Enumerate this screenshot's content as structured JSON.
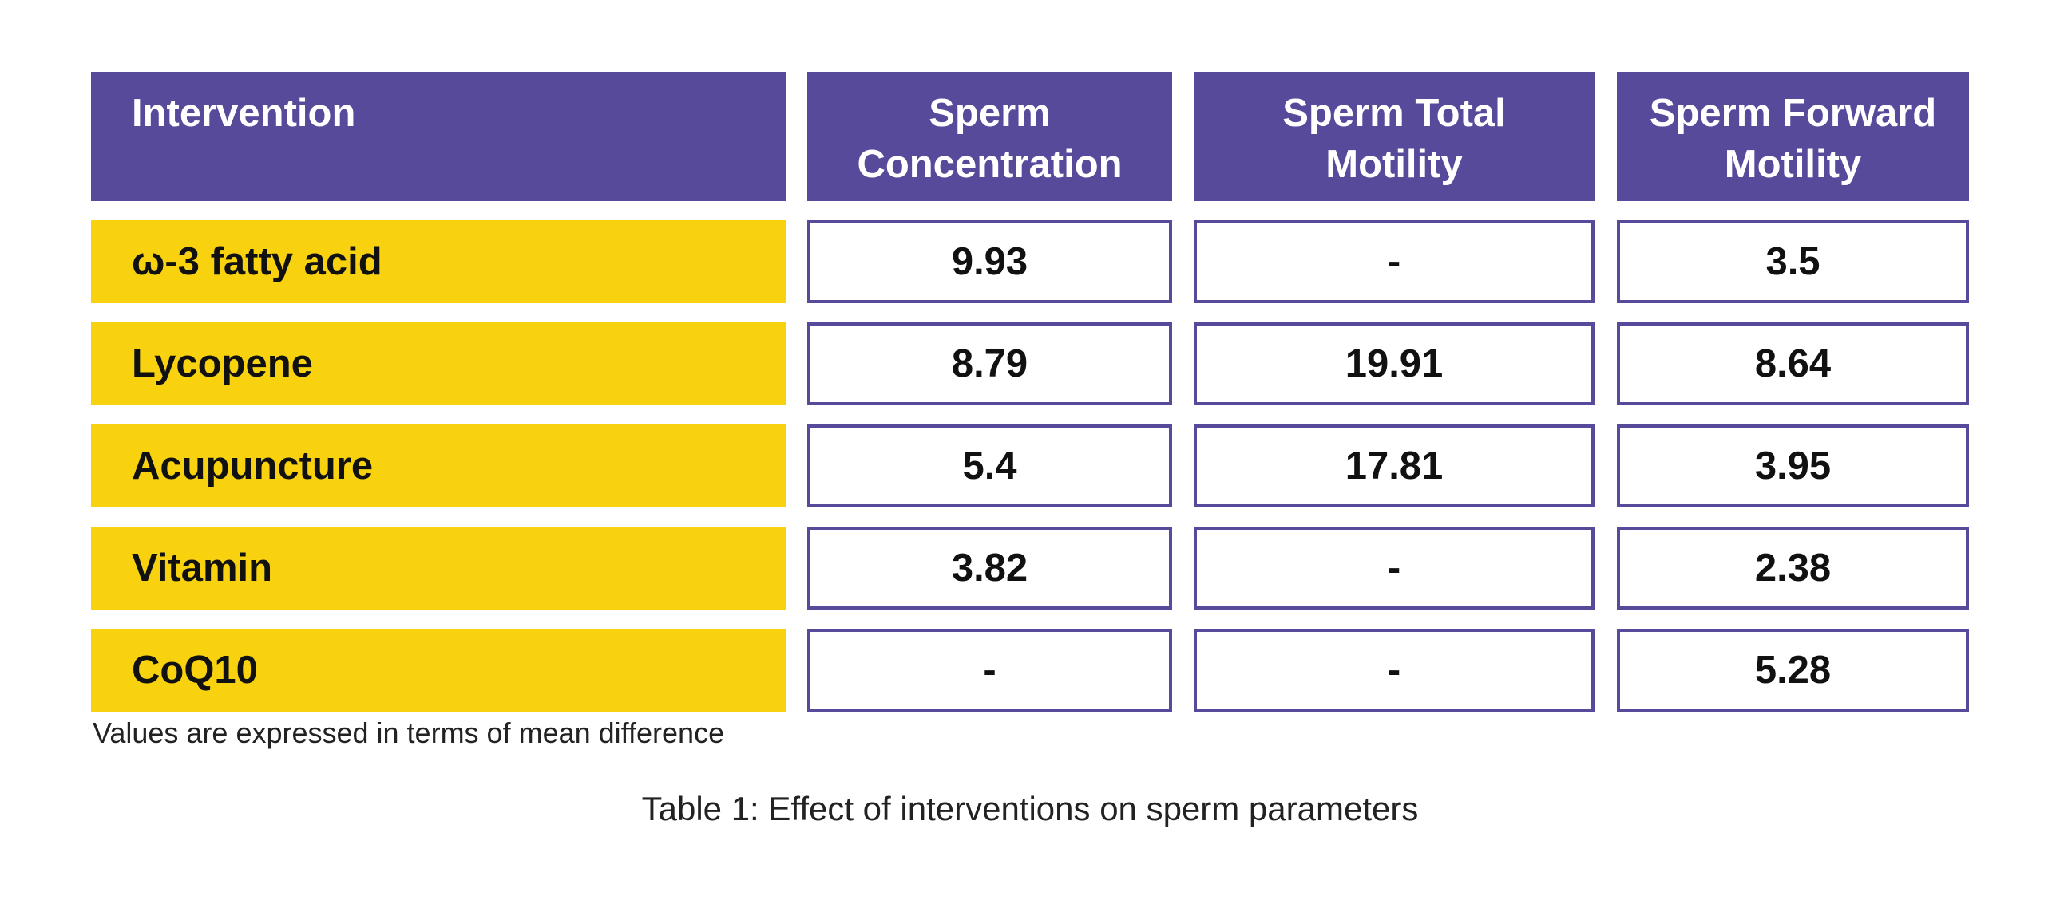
{
  "table": {
    "headers": [
      "Intervention",
      "Sperm Concentration",
      "Sperm Total Motility",
      "Sperm Forward Motility"
    ],
    "rows": [
      {
        "label": "ω-3 fatty acid",
        "values": [
          "9.93",
          "-",
          "3.5"
        ]
      },
      {
        "label": "Lycopene",
        "values": [
          "8.79",
          "19.91",
          "8.64"
        ]
      },
      {
        "label": "Acupuncture",
        "values": [
          "5.4",
          "17.81",
          "3.95"
        ]
      },
      {
        "label": "Vitamin",
        "values": [
          "3.82",
          "-",
          "2.38"
        ]
      },
      {
        "label": "CoQ10",
        "values": [
          "-",
          "-",
          "5.28"
        ]
      }
    ]
  },
  "note": "Values are expressed in terms of mean difference",
  "caption": "Table 1: Effect of interventions on sperm parameters",
  "colors": {
    "header_bg": "#574a9b",
    "label_bg": "#f8d20f",
    "border": "#574a9b"
  }
}
